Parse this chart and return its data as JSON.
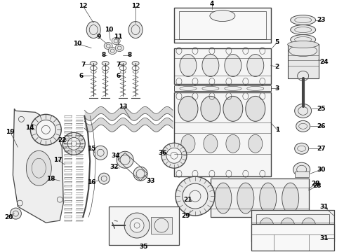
{
  "bg_color": "#ffffff",
  "line_color": "#444444",
  "text_color": "#000000",
  "figsize": [
    4.9,
    3.6
  ],
  "dpi": 100
}
